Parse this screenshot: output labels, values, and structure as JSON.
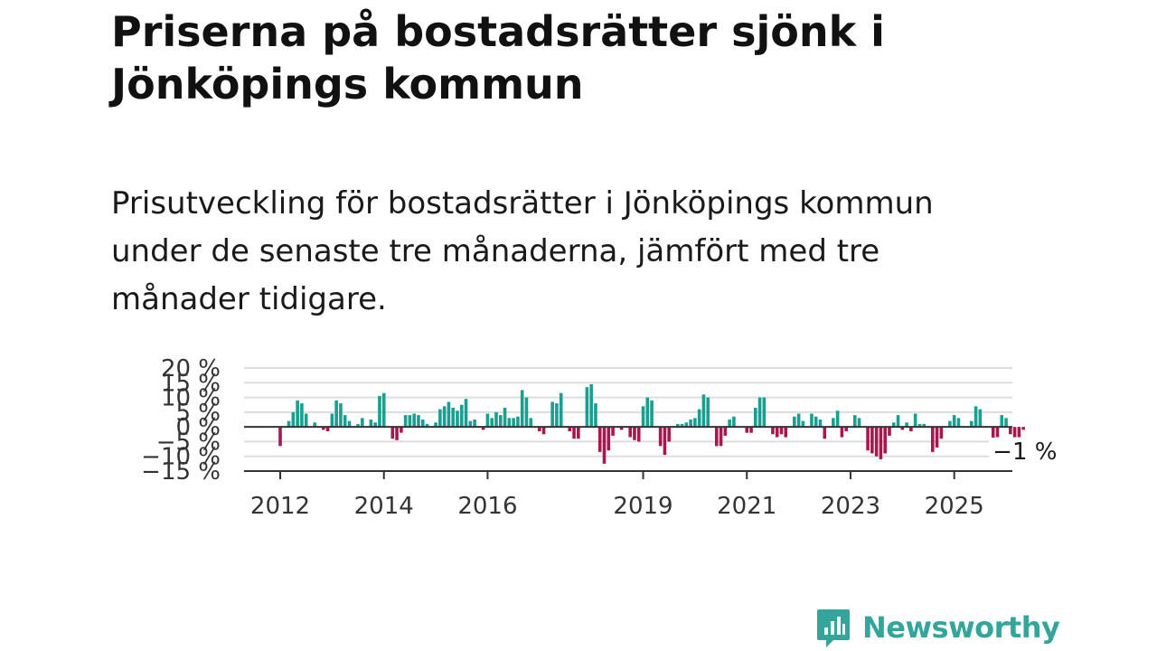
{
  "header": {
    "title": "Priserna på bostadsrätter sjönk i Jönköpings kommun",
    "subtitle": "Prisutveckling för bostadsrätter i Jönköpings kommun under de senaste tre månaderna, jämfört med tre månader tidigare."
  },
  "chart_data": {
    "type": "bar",
    "x_start": "2012-01",
    "frequency": "monthly",
    "y_unit": "%",
    "ylim": [
      -15,
      20
    ],
    "y_ticks": [
      20,
      15,
      10,
      5,
      0,
      -5,
      -10,
      -15
    ],
    "y_tick_labels": [
      "20 %",
      "15 %",
      "10 %",
      "5 %",
      "0 %",
      "−5 %",
      "−10 %",
      "−15 %"
    ],
    "x_ticks": [
      "2012",
      "2014",
      "2016",
      "2019",
      "2021",
      "2023",
      "2025"
    ],
    "grid": true,
    "colors": {
      "positive": "#1a9e92",
      "negative": "#a8174f",
      "zero_line": "#333333",
      "grid": "#dddddd",
      "axis_text": "#333333"
    },
    "last_value_label": "−1 %",
    "values": [
      -6.5,
      0,
      2,
      5,
      9,
      8,
      4.5,
      0,
      1.5,
      0,
      -1,
      -1.5,
      4.5,
      9,
      8,
      4,
      2,
      0,
      1,
      3,
      0,
      2.5,
      1.5,
      10.5,
      11.5,
      0,
      -4,
      -4.5,
      -2,
      4,
      4,
      4.5,
      4,
      2.5,
      1,
      0,
      1.5,
      6,
      7,
      8.5,
      6.5,
      5.5,
      7.5,
      9.5,
      2,
      2.5,
      0,
      -1,
      4.5,
      3,
      5,
      4,
      6.5,
      3,
      3,
      3.5,
      12.5,
      10,
      3,
      0,
      -1.5,
      -2.5,
      0,
      8.5,
      8,
      11.5,
      0,
      -1.5,
      -4,
      -4,
      0,
      13.5,
      14.5,
      8,
      -8.5,
      -12.5,
      -8,
      -3,
      0,
      -1,
      0,
      -3.5,
      -4.5,
      -5,
      7,
      10,
      9,
      0,
      -6.5,
      -9.5,
      -5,
      0,
      1,
      1,
      1.5,
      2.5,
      3,
      6,
      11,
      10,
      0,
      -6.5,
      -6.5,
      -3,
      2.5,
      3.5,
      0,
      0,
      -2,
      -2,
      6.5,
      10,
      10,
      0,
      -2.5,
      -3.5,
      -2.5,
      -3.5,
      0,
      3.5,
      4.5,
      2,
      0,
      4.5,
      3.5,
      2.5,
      -4,
      0,
      3,
      5.5,
      -3.5,
      -1.5,
      0,
      4,
      3,
      0,
      -8,
      -9,
      -10,
      -11,
      -9,
      -3,
      1.5,
      4,
      -1,
      1.5,
      -1.5,
      4.5,
      1,
      1,
      0,
      -8.5,
      -7,
      -4,
      0,
      2,
      4,
      3,
      0,
      0,
      2,
      7,
      6,
      0,
      0,
      -6.5,
      -3.5,
      4,
      3,
      -2.5,
      -3.5,
      -3.5,
      -1
    ]
  },
  "footer": {
    "brand": "Newsworthy",
    "logo_icon": "newsworthy-logo-icon"
  }
}
